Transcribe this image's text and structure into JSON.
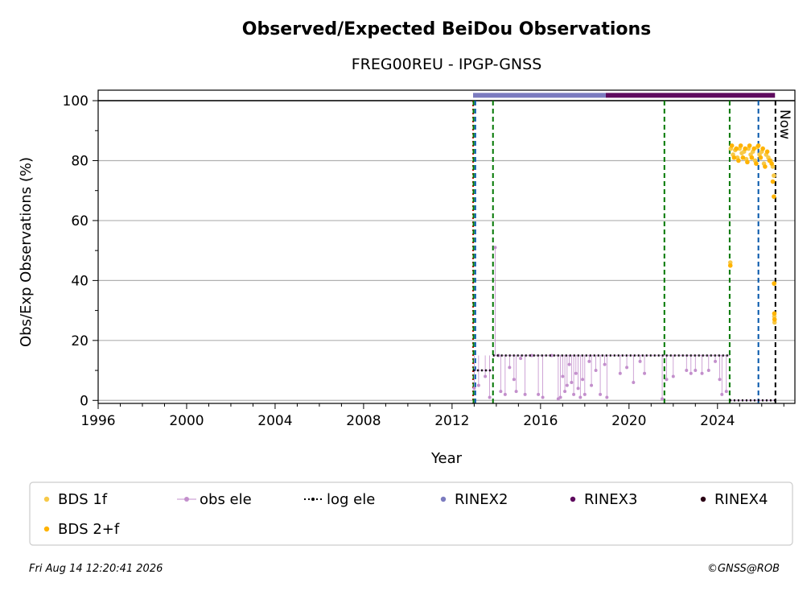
{
  "chart_data": {
    "type": "scatter",
    "title": "Observed/Expected BeiDou Observations",
    "subtitle": "FREG00REU - IPGP-GNSS",
    "xlabel": "Year",
    "ylabel": "Obs/Exp Observations (%)",
    "xlim": [
      1996,
      2027.5
    ],
    "ylim": [
      -1,
      103.5
    ],
    "xticks": [
      "1996",
      "2000",
      "2004",
      "2008",
      "2012",
      "2016",
      "2020",
      "2024"
    ],
    "xtick_values": [
      1996,
      2000,
      2004,
      2008,
      2012,
      2016,
      2020,
      2024
    ],
    "yticks": [
      "0",
      "20",
      "40",
      "60",
      "80",
      "100"
    ],
    "ytick_values": [
      0,
      20,
      40,
      60,
      80,
      100
    ],
    "grid": "horizontal",
    "reference_line_y": 100,
    "now_label": "Now",
    "now_x": 2026.62,
    "vlines": [
      {
        "x": 2012.95,
        "color": "#cc0000",
        "style": "dotted"
      },
      {
        "x": 2012.97,
        "color": "#007700",
        "style": "dashed"
      },
      {
        "x": 2013.05,
        "color": "#0055aa",
        "style": "dashed"
      },
      {
        "x": 2013.85,
        "color": "#007700",
        "style": "dashed"
      },
      {
        "x": 2021.6,
        "color": "#007700",
        "style": "dashed"
      },
      {
        "x": 2024.55,
        "color": "#007700",
        "style": "dashed"
      },
      {
        "x": 2025.85,
        "color": "#0055aa",
        "style": "dashed"
      }
    ],
    "rinex_bars": [
      {
        "name": "RINEX2",
        "x0": 2012.95,
        "x1": 2018.95,
        "y": 101.8,
        "color": "#7b7bbf"
      },
      {
        "name": "RINEX3",
        "x0": 2018.95,
        "x1": 2026.6,
        "y": 101.8,
        "color": "#5e0a5e"
      }
    ],
    "log_ele": [
      {
        "x0": 2012.95,
        "x1": 2013.85,
        "y": 10
      },
      {
        "x0": 2013.85,
        "x1": 2024.55,
        "y": 15
      },
      {
        "x0": 2024.55,
        "x1": 2026.6,
        "y": 0
      }
    ],
    "series": [
      {
        "name": "BDS 1f",
        "color": "#f7c948",
        "points": [
          [
            2024.6,
            84
          ],
          [
            2024.7,
            82
          ],
          [
            2024.8,
            83.5
          ],
          [
            2024.9,
            81
          ],
          [
            2025.0,
            84
          ],
          [
            2025.1,
            82.5
          ],
          [
            2025.2,
            83
          ],
          [
            2025.3,
            80.5
          ],
          [
            2025.4,
            84
          ],
          [
            2025.5,
            82
          ],
          [
            2025.6,
            83
          ],
          [
            2025.7,
            80
          ],
          [
            2025.8,
            84.5
          ],
          [
            2025.9,
            82
          ],
          [
            2026.0,
            83
          ],
          [
            2026.1,
            79
          ],
          [
            2026.2,
            82
          ],
          [
            2026.3,
            81
          ],
          [
            2026.4,
            80
          ],
          [
            2026.5,
            78
          ],
          [
            2026.55,
            75
          ],
          [
            2024.58,
            46
          ],
          [
            2026.56,
            39
          ],
          [
            2026.57,
            28
          ],
          [
            2026.58,
            26
          ]
        ]
      },
      {
        "name": "BDS 2+f",
        "color": "#ffb300",
        "points": [
          [
            2024.65,
            85
          ],
          [
            2024.75,
            81
          ],
          [
            2024.85,
            84
          ],
          [
            2024.95,
            80
          ],
          [
            2025.05,
            85
          ],
          [
            2025.15,
            81
          ],
          [
            2025.25,
            84
          ],
          [
            2025.35,
            79.5
          ],
          [
            2025.45,
            85
          ],
          [
            2025.55,
            81
          ],
          [
            2025.65,
            84
          ],
          [
            2025.75,
            79
          ],
          [
            2025.85,
            85
          ],
          [
            2025.95,
            81
          ],
          [
            2026.05,
            84
          ],
          [
            2026.15,
            78
          ],
          [
            2026.25,
            83
          ],
          [
            2026.35,
            80
          ],
          [
            2026.45,
            79
          ],
          [
            2026.5,
            73
          ],
          [
            2026.55,
            68
          ],
          [
            2024.58,
            45
          ],
          [
            2026.56,
            39
          ],
          [
            2026.57,
            29
          ],
          [
            2026.58,
            27
          ]
        ]
      },
      {
        "name": "obs ele",
        "color": "#c38fcc",
        "points": [
          [
            2013.0,
            4
          ],
          [
            2013.2,
            5
          ],
          [
            2013.5,
            8
          ],
          [
            2013.7,
            1
          ],
          [
            2013.95,
            51
          ],
          [
            2014.1,
            15
          ],
          [
            2014.2,
            3
          ],
          [
            2014.4,
            2
          ],
          [
            2014.6,
            11
          ],
          [
            2014.8,
            7
          ],
          [
            2014.9,
            3
          ],
          [
            2015.1,
            14
          ],
          [
            2015.3,
            2
          ],
          [
            2015.6,
            15
          ],
          [
            2015.9,
            2
          ],
          [
            2016.1,
            1
          ],
          [
            2016.5,
            15
          ],
          [
            2016.8,
            0.5
          ],
          [
            2016.9,
            1
          ],
          [
            2017.0,
            8
          ],
          [
            2017.1,
            3
          ],
          [
            2017.2,
            5
          ],
          [
            2017.3,
            12
          ],
          [
            2017.4,
            6
          ],
          [
            2017.5,
            2
          ],
          [
            2017.6,
            9
          ],
          [
            2017.7,
            4
          ],
          [
            2017.8,
            1
          ],
          [
            2017.9,
            7
          ],
          [
            2018.0,
            2
          ],
          [
            2018.2,
            13
          ],
          [
            2018.3,
            5
          ],
          [
            2018.5,
            10
          ],
          [
            2018.7,
            2
          ],
          [
            2018.9,
            12
          ],
          [
            2019.0,
            1
          ],
          [
            2019.6,
            9
          ],
          [
            2019.9,
            11
          ],
          [
            2020.2,
            6
          ],
          [
            2020.5,
            13
          ],
          [
            2020.7,
            9
          ],
          [
            2021.5,
            0.5
          ],
          [
            2021.7,
            7
          ],
          [
            2022.0,
            8
          ],
          [
            2022.6,
            10
          ],
          [
            2022.8,
            9
          ],
          [
            2023.0,
            10
          ],
          [
            2023.3,
            9
          ],
          [
            2023.6,
            10
          ],
          [
            2023.9,
            13
          ],
          [
            2024.1,
            7
          ],
          [
            2024.2,
            2
          ],
          [
            2024.4,
            3
          ]
        ]
      }
    ],
    "legend": [
      {
        "label": "BDS 1f",
        "kind": "dot",
        "color": "#f7c948"
      },
      {
        "label": "obs ele",
        "kind": "line-dot",
        "color": "#c38fcc"
      },
      {
        "label": "log ele",
        "kind": "dotted",
        "color": "#000000"
      },
      {
        "label": "RINEX2",
        "kind": "dot",
        "color": "#7b7bbf"
      },
      {
        "label": "RINEX3",
        "kind": "dot",
        "color": "#5e0a5e"
      },
      {
        "label": "RINEX4",
        "kind": "dot",
        "color": "#2a0014"
      },
      {
        "label": "BDS 2+f",
        "kind": "dot",
        "color": "#ffb300"
      }
    ],
    "legend_position": "bottom"
  },
  "footer": {
    "timestamp": "Fri Aug 14 12:20:41 2026",
    "copyright": "©GNSS@ROB"
  }
}
